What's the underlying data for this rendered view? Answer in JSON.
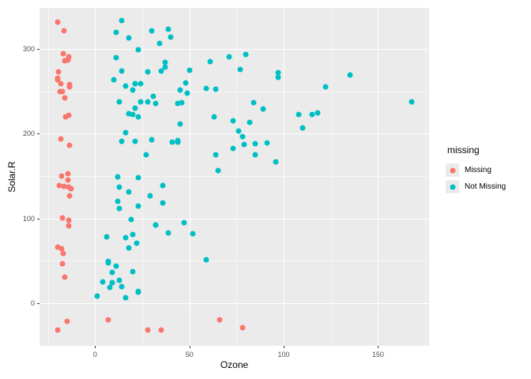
{
  "legend": {
    "title": "missing",
    "items": [
      {
        "label": "Missing",
        "color": "#F8766D"
      },
      {
        "label": "Not Missing",
        "color": "#00BFC4"
      }
    ]
  },
  "colors": {
    "missing": "#F8766D",
    "not_missing": "#00BFC4",
    "panel_background": "#EBEBEB",
    "grid": "#FFFFFF",
    "tick_text": "#4D4D4D",
    "axis_title_text": "#000000"
  },
  "chart_data": {
    "type": "scatter",
    "title": "",
    "xlabel": "Ozone",
    "ylabel": "Solar.R",
    "legend_title": "missing",
    "legend_position": "right",
    "grid": true,
    "xlim": [
      -29.5,
      177.1
    ],
    "ylim": [
      -50.3,
      348.6
    ],
    "x_ticks": [
      0,
      50,
      100,
      150
    ],
    "y_ticks": [
      0,
      100,
      200,
      300
    ],
    "x_minor_ticks": [
      -25,
      25,
      75,
      125,
      175
    ],
    "y_minor_ticks": [
      50,
      150,
      250
    ],
    "series": [
      {
        "name": "Not Missing",
        "color": "#00BFC4",
        "points": [
          [
            41,
            190
          ],
          [
            36,
            118
          ],
          [
            12,
            149
          ],
          [
            18,
            313
          ],
          [
            23,
            299
          ],
          [
            19,
            99
          ],
          [
            8,
            19
          ],
          [
            16,
            256
          ],
          [
            11,
            290
          ],
          [
            14,
            274
          ],
          [
            18,
            65
          ],
          [
            14,
            334
          ],
          [
            34,
            307
          ],
          [
            6,
            78
          ],
          [
            30,
            322
          ],
          [
            11,
            44
          ],
          [
            1,
            8
          ],
          [
            11,
            320
          ],
          [
            4,
            25
          ],
          [
            32,
            92
          ],
          [
            23,
            13
          ],
          [
            45,
            252
          ],
          [
            115,
            223
          ],
          [
            37,
            279
          ],
          [
            29,
            127
          ],
          [
            71,
            291
          ],
          [
            39,
            323
          ],
          [
            23,
            148
          ],
          [
            21,
            191
          ],
          [
            37,
            284
          ],
          [
            20,
            37
          ],
          [
            12,
            120
          ],
          [
            13,
            137
          ],
          [
            135,
            269
          ],
          [
            49,
            248
          ],
          [
            32,
            236
          ],
          [
            64,
            175
          ],
          [
            40,
            314
          ],
          [
            77,
            276
          ],
          [
            97,
            267
          ],
          [
            97,
            272
          ],
          [
            85,
            175
          ],
          [
            10,
            264
          ],
          [
            27,
            175
          ],
          [
            7,
            48
          ],
          [
            48,
            260
          ],
          [
            35,
            274
          ],
          [
            61,
            285
          ],
          [
            79,
            187
          ],
          [
            63,
            220
          ],
          [
            16,
            7
          ],
          [
            80,
            294
          ],
          [
            108,
            223
          ],
          [
            20,
            81
          ],
          [
            52,
            82
          ],
          [
            82,
            213
          ],
          [
            50,
            275
          ],
          [
            64,
            253
          ],
          [
            59,
            254
          ],
          [
            39,
            83
          ],
          [
            9,
            24
          ],
          [
            16,
            77
          ],
          [
            122,
            255
          ],
          [
            89,
            229
          ],
          [
            110,
            207
          ],
          [
            44,
            192
          ],
          [
            28,
            273
          ],
          [
            65,
            157
          ],
          [
            22,
            71
          ],
          [
            59,
            51
          ],
          [
            23,
            115
          ],
          [
            31,
            244
          ],
          [
            44,
            190
          ],
          [
            21,
            259
          ],
          [
            9,
            36
          ],
          [
            45,
            212
          ],
          [
            168,
            238
          ],
          [
            73,
            215
          ],
          [
            76,
            203
          ],
          [
            118,
            225
          ],
          [
            84,
            237
          ],
          [
            85,
            188
          ],
          [
            96,
            167
          ],
          [
            78,
            197
          ],
          [
            73,
            183
          ],
          [
            91,
            189
          ],
          [
            47,
            95
          ],
          [
            32,
            92
          ],
          [
            20,
            252
          ],
          [
            23,
            220
          ],
          [
            21,
            230
          ],
          [
            24,
            259
          ],
          [
            44,
            236
          ],
          [
            21,
            259
          ],
          [
            28,
            238
          ],
          [
            9,
            24
          ],
          [
            13,
            112
          ],
          [
            46,
            237
          ],
          [
            18,
            224
          ],
          [
            13,
            27
          ],
          [
            24,
            238
          ],
          [
            16,
            201
          ],
          [
            13,
            238
          ],
          [
            23,
            14
          ],
          [
            36,
            139
          ],
          [
            7,
            49
          ],
          [
            14,
            20
          ],
          [
            30,
            193
          ],
          [
            14,
            191
          ],
          [
            18,
            131
          ],
          [
            20,
            223
          ]
        ]
      },
      {
        "name": "Missing",
        "color": "#F8766D",
        "points": [
          [
            -18.1,
            194
          ],
          [
            -19.9,
            66
          ],
          [
            -19.9,
            266
          ],
          [
            -16.2,
            286
          ],
          [
            -14.5,
            287
          ],
          [
            -16.2,
            242
          ],
          [
            -13.4,
            186
          ],
          [
            -15.8,
            220
          ],
          [
            -19.7,
            264
          ],
          [
            -19.4,
            273
          ],
          [
            -18.0,
            259
          ],
          [
            -17.4,
            250
          ],
          [
            -19.9,
            332
          ],
          [
            -16.6,
            322
          ],
          [
            -17.6,
            150
          ],
          [
            -16.9,
            59
          ],
          [
            -14.1,
            91
          ],
          [
            -18.4,
            250
          ],
          [
            -12.8,
            135
          ],
          [
            -13.7,
            127
          ],
          [
            -17.2,
            47
          ],
          [
            -13.8,
            98
          ],
          [
            -16.2,
            31
          ],
          [
            -16.5,
            138
          ],
          [
            -17.2,
            101
          ],
          [
            -19.0,
            139
          ],
          [
            -14.1,
            291
          ],
          [
            -13.4,
            258
          ],
          [
            -16.9,
            295
          ],
          [
            -14.2,
            222
          ],
          [
            -13.8,
            137
          ],
          [
            -17.9,
            64
          ],
          [
            -13.4,
            255
          ],
          [
            -14.5,
            153
          ],
          [
            -14.5,
            145
          ],
          [
            7,
            -19.9
          ],
          [
            28,
            -31.4
          ],
          [
            35,
            -31.4
          ],
          [
            66,
            -19.9
          ],
          [
            78,
            -29.2
          ],
          [
            -19.7,
            -32.0
          ],
          [
            -15.0,
            -21.5
          ]
        ]
      }
    ]
  }
}
